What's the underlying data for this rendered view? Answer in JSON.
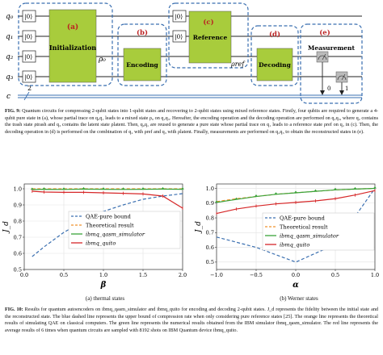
{
  "fig9": {
    "qubits": [
      "q₀",
      "q₁",
      "q₂",
      "q₃",
      "c"
    ],
    "kets": [
      "|0⟩",
      "|0⟩",
      "|0⟩",
      "|0⟩"
    ],
    "creg_size": "2",
    "rho0": "ρ₀",
    "rho_ref": "ρref",
    "blocks": [
      {
        "tag": "(a)",
        "name": "Initialization"
      },
      {
        "tag": "(b)",
        "name": "Encoding"
      },
      {
        "tag": "(c)",
        "name": "Reference"
      },
      {
        "tag": "(d)",
        "name": "Decoding"
      },
      {
        "tag": "(e)",
        "name": "Measurement"
      }
    ],
    "meas_bits": [
      "0",
      "1"
    ],
    "caption_label": "FIG. 9:",
    "caption": "Quantum circuits for compressing 2-qubit states into 1-qubit states and recovering to 2-qubit states using mixed reference states. Firstly, four qubits are required to generate a 4-qubit pure state in (a), whose partial trace on q₀q₁ leads to a mixed state ρ₀ on q₂q₃. Hereafter, the encoding operation and the decoding operation are performed on q₂q₃, where q₂ contains the trash state ρtrash and q₃ contains the latent state ρlatent. Then, q₀q₁ are reused to generate a pure state whose partial trace on q₁ leads to a reference state ρref on q₂ in (c). Then, the decoding operation in (d) is performed on the combination of q₂ with ρref and q₃ with ρlatent. Finally, measurements are performed on q₂q₃ to obtain the reconstructed states in (e)."
  },
  "fig10": {
    "caption_label": "FIG. 10:",
    "caption": "Results for quantum autoencoders on ibmq_qasm_simulator and ibmq_quito for encoding and decoding 2-qubit states. J_d represents the fidelity between the initial state and the reconstructed state. The blue dashed line represents the upper bound of compression rate when only considering pure reference states [25]. The orange line represents the theoretical results of simulating QAE on classical computers. The green line represents the numerical results obtained from the IBM simulator ibmq_qasm_simulator. The red line represents the average results of 6 times when quantum circuits are sampled with 8192 shots on IBM Quantum device ibmq_quito.",
    "subcaption_a": "(a) thermal states",
    "subcaption_b": "(b) Werner states"
  },
  "chart_data": [
    {
      "type": "line",
      "xlabel": "β",
      "ylabel": "J_d",
      "xlim": [
        0,
        2
      ],
      "ylim": [
        0.5,
        1.03
      ],
      "xticks": [
        "0.0",
        "0.5",
        "1.0",
        "1.5",
        "2.0"
      ],
      "yticks": [
        "0.5",
        "0.6",
        "0.7",
        "0.8",
        "0.9",
        "1.0"
      ],
      "grid": true,
      "legend": "center-right",
      "series": [
        {
          "name": "QAE-pure bound",
          "color": "#3a6fb0",
          "style": "dashed",
          "x": [
            0.1,
            0.25,
            0.5,
            0.75,
            1.0,
            1.25,
            1.5,
            1.75,
            2.0
          ],
          "y": [
            0.58,
            0.64,
            0.73,
            0.8,
            0.86,
            0.9,
            0.935,
            0.955,
            0.97
          ]
        },
        {
          "name": "Theoretical result",
          "color": "#f0922c",
          "style": "dashed",
          "x": [
            0.1,
            0.25,
            0.5,
            0.75,
            1.0,
            1.25,
            1.5,
            1.75,
            2.0
          ],
          "y": [
            1.0,
            1.0,
            1.0,
            1.0,
            1.0,
            1.0,
            1.0,
            1.0,
            1.0
          ]
        },
        {
          "name": "ibmq_qasm_simulator",
          "color": "#3aa33a",
          "style": "solid",
          "x": [
            0.1,
            0.25,
            0.5,
            0.75,
            1.0,
            1.25,
            1.5,
            1.75,
            2.0
          ],
          "y": [
            0.995,
            0.997,
            0.996,
            0.998,
            0.997,
            0.996,
            0.997,
            0.998,
            0.997
          ]
        },
        {
          "name": "ibmq_quito",
          "color": "#d62728",
          "style": "solid",
          "x": [
            0.1,
            0.25,
            0.5,
            0.75,
            1.0,
            1.25,
            1.5,
            1.75,
            2.0
          ],
          "y": [
            0.985,
            0.98,
            0.978,
            0.978,
            0.975,
            0.972,
            0.968,
            0.955,
            0.88
          ]
        }
      ]
    },
    {
      "type": "line",
      "xlabel": "α",
      "ylabel": "J_d",
      "xlim": [
        -1,
        1
      ],
      "ylim": [
        0.45,
        1.03
      ],
      "xticks": [
        "−1.0",
        "−0.5",
        "0.0",
        "0.5",
        "1.0"
      ],
      "yticks": [
        "0.5",
        "0.6",
        "0.7",
        "0.8",
        "0.9",
        "1.0"
      ],
      "grid": true,
      "legend": "center-right",
      "series": [
        {
          "name": "QAE-pure bound",
          "color": "#3a6fb0",
          "style": "dashed",
          "x": [
            -1.0,
            -0.5,
            0.0,
            0.5,
            1.0
          ],
          "y": [
            0.67,
            0.6,
            0.5,
            0.62,
            1.0
          ]
        },
        {
          "name": "Theoretical result",
          "color": "#f0922c",
          "style": "dashed",
          "x": [
            -1.0,
            -0.75,
            -0.5,
            -0.25,
            0.0,
            0.25,
            0.5,
            0.75,
            1.0
          ],
          "y": [
            0.91,
            0.93,
            0.945,
            0.96,
            0.97,
            0.98,
            0.99,
            0.995,
            1.0
          ]
        },
        {
          "name": "ibmq_qasm_simulator",
          "color": "#3aa33a",
          "style": "solid",
          "x": [
            -1.0,
            -0.75,
            -0.5,
            -0.25,
            0.0,
            0.25,
            0.5,
            0.75,
            1.0
          ],
          "y": [
            0.905,
            0.925,
            0.945,
            0.96,
            0.97,
            0.98,
            0.99,
            0.995,
            1.0
          ]
        },
        {
          "name": "ibmq_quito",
          "color": "#d62728",
          "style": "solid",
          "x": [
            -1.0,
            -0.75,
            -0.5,
            -0.25,
            0.0,
            0.25,
            0.5,
            0.75,
            1.0
          ],
          "y": [
            0.83,
            0.86,
            0.88,
            0.895,
            0.905,
            0.915,
            0.93,
            0.955,
            0.985
          ]
        }
      ]
    }
  ]
}
